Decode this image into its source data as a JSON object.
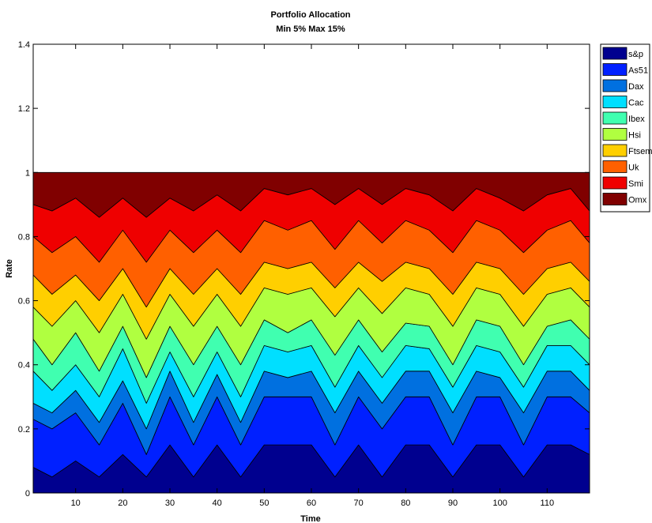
{
  "chart_data": {
    "type": "area",
    "stacked": true,
    "title": "Portfolio Allocation",
    "subtitle": "Min 5% Max 15%",
    "xlabel": "Time",
    "ylabel": "Rate",
    "xlim": [
      1,
      119
    ],
    "ylim": [
      0,
      1.4
    ],
    "xticks": [
      10,
      20,
      30,
      40,
      50,
      60,
      70,
      80,
      90,
      100,
      110
    ],
    "yticks": [
      0,
      0.2,
      0.4,
      0.6,
      0.8,
      1,
      1.2,
      1.4
    ],
    "ytick_labels": [
      "0",
      "0.2",
      "0.4",
      "0.6",
      "0.8",
      "1",
      "1.2",
      "1.4"
    ],
    "grid": false,
    "legend_position": "outside-top-right",
    "series": [
      {
        "name": "s&p",
        "color": "#00008F"
      },
      {
        "name": "As51",
        "color": "#0020FF"
      },
      {
        "name": "Dax",
        "color": "#0070E0"
      },
      {
        "name": "Cac",
        "color": "#00DFFF"
      },
      {
        "name": "Ibex",
        "color": "#40FFB0"
      },
      {
        "name": "Hsi",
        "color": "#B0FF40"
      },
      {
        "name": "Ftsemi",
        "color": "#FFCF00"
      },
      {
        "name": "Uk",
        "color": "#FF6000"
      },
      {
        "name": "Smi",
        "color": "#EF0000"
      },
      {
        "name": "Omx",
        "color": "#800000"
      }
    ],
    "boundaries_at_x": [
      1,
      5,
      10,
      15,
      20,
      25,
      30,
      35,
      40,
      45,
      50,
      55,
      60,
      65,
      70,
      75,
      80,
      85,
      90,
      95,
      100,
      105,
      110,
      115,
      119
    ],
    "cumulative_boundaries": [
      [
        0.08,
        0.05,
        0.1,
        0.05,
        0.12,
        0.05,
        0.15,
        0.05,
        0.15,
        0.05,
        0.15,
        0.15,
        0.15,
        0.05,
        0.15,
        0.05,
        0.15,
        0.15,
        0.05,
        0.15,
        0.15,
        0.05,
        0.15,
        0.15,
        0.12
      ],
      [
        0.23,
        0.2,
        0.25,
        0.15,
        0.28,
        0.12,
        0.3,
        0.15,
        0.3,
        0.15,
        0.3,
        0.3,
        0.3,
        0.15,
        0.3,
        0.2,
        0.3,
        0.3,
        0.15,
        0.3,
        0.3,
        0.15,
        0.3,
        0.3,
        0.25
      ],
      [
        0.28,
        0.25,
        0.32,
        0.22,
        0.35,
        0.2,
        0.38,
        0.22,
        0.37,
        0.22,
        0.38,
        0.36,
        0.38,
        0.25,
        0.38,
        0.28,
        0.38,
        0.38,
        0.25,
        0.38,
        0.36,
        0.25,
        0.38,
        0.38,
        0.32
      ],
      [
        0.38,
        0.32,
        0.4,
        0.3,
        0.45,
        0.28,
        0.44,
        0.3,
        0.44,
        0.3,
        0.46,
        0.44,
        0.46,
        0.33,
        0.46,
        0.36,
        0.46,
        0.45,
        0.33,
        0.46,
        0.44,
        0.33,
        0.46,
        0.46,
        0.4
      ],
      [
        0.48,
        0.4,
        0.5,
        0.38,
        0.52,
        0.36,
        0.52,
        0.4,
        0.52,
        0.4,
        0.54,
        0.5,
        0.54,
        0.43,
        0.54,
        0.44,
        0.53,
        0.52,
        0.4,
        0.54,
        0.52,
        0.4,
        0.52,
        0.54,
        0.48
      ],
      [
        0.58,
        0.52,
        0.6,
        0.5,
        0.62,
        0.48,
        0.62,
        0.52,
        0.62,
        0.52,
        0.64,
        0.62,
        0.64,
        0.55,
        0.64,
        0.56,
        0.64,
        0.62,
        0.52,
        0.64,
        0.62,
        0.52,
        0.62,
        0.64,
        0.58
      ],
      [
        0.68,
        0.62,
        0.68,
        0.6,
        0.7,
        0.58,
        0.7,
        0.62,
        0.7,
        0.62,
        0.72,
        0.7,
        0.72,
        0.64,
        0.72,
        0.66,
        0.72,
        0.7,
        0.62,
        0.72,
        0.7,
        0.62,
        0.7,
        0.72,
        0.66
      ],
      [
        0.8,
        0.75,
        0.8,
        0.72,
        0.82,
        0.72,
        0.82,
        0.75,
        0.82,
        0.75,
        0.85,
        0.82,
        0.85,
        0.76,
        0.85,
        0.78,
        0.85,
        0.82,
        0.75,
        0.85,
        0.82,
        0.75,
        0.82,
        0.85,
        0.78
      ],
      [
        0.9,
        0.88,
        0.92,
        0.86,
        0.92,
        0.86,
        0.92,
        0.88,
        0.93,
        0.88,
        0.95,
        0.93,
        0.95,
        0.9,
        0.95,
        0.9,
        0.95,
        0.93,
        0.88,
        0.95,
        0.92,
        0.88,
        0.93,
        0.95,
        0.88
      ],
      [
        1,
        1,
        1,
        1,
        1,
        1,
        1,
        1,
        1,
        1,
        1,
        1,
        1,
        1,
        1,
        1,
        1,
        1,
        1,
        1,
        1,
        1,
        1,
        1,
        1
      ]
    ]
  }
}
